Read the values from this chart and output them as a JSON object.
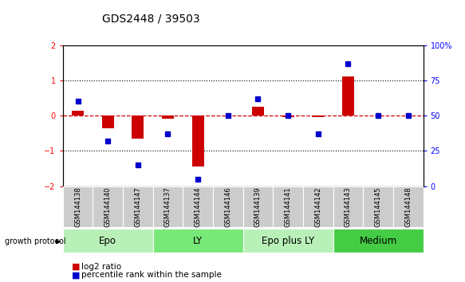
{
  "title": "GDS2448 / 39503",
  "samples": [
    "GSM144138",
    "GSM144140",
    "GSM144147",
    "GSM144137",
    "GSM144144",
    "GSM144146",
    "GSM144139",
    "GSM144141",
    "GSM144142",
    "GSM144143",
    "GSM144145",
    "GSM144148"
  ],
  "log2_ratio": [
    0.15,
    -0.35,
    -0.65,
    -0.08,
    -1.45,
    0.0,
    0.25,
    -0.05,
    -0.05,
    1.1,
    0.0,
    0.0
  ],
  "percentile_rank": [
    60,
    32,
    15,
    37,
    5,
    50,
    62,
    50,
    37,
    87,
    50,
    50
  ],
  "groups": [
    {
      "label": "Epo",
      "start": 0,
      "end": 3,
      "color": "#b8f0b8"
    },
    {
      "label": "LY",
      "start": 3,
      "end": 6,
      "color": "#78e878"
    },
    {
      "label": "Epo plus LY",
      "start": 6,
      "end": 9,
      "color": "#b8f0b8"
    },
    {
      "label": "Medium",
      "start": 9,
      "end": 12,
      "color": "#44cc44"
    }
  ],
  "ylim": [
    -2,
    2
  ],
  "yticks_left": [
    -2,
    -1,
    0,
    1,
    2
  ],
  "yticks_right": [
    0,
    25,
    50,
    75,
    100
  ],
  "bar_color": "#cc0000",
  "dot_color": "#0000cc",
  "background_color": "#ffffff",
  "grid_color": "#000000",
  "zero_line_color": "#cc0000",
  "title_fontsize": 10,
  "tick_fontsize": 7,
  "group_label_fontsize": 8.5,
  "sample_fontsize": 6.0,
  "legend_fontsize": 7.5
}
